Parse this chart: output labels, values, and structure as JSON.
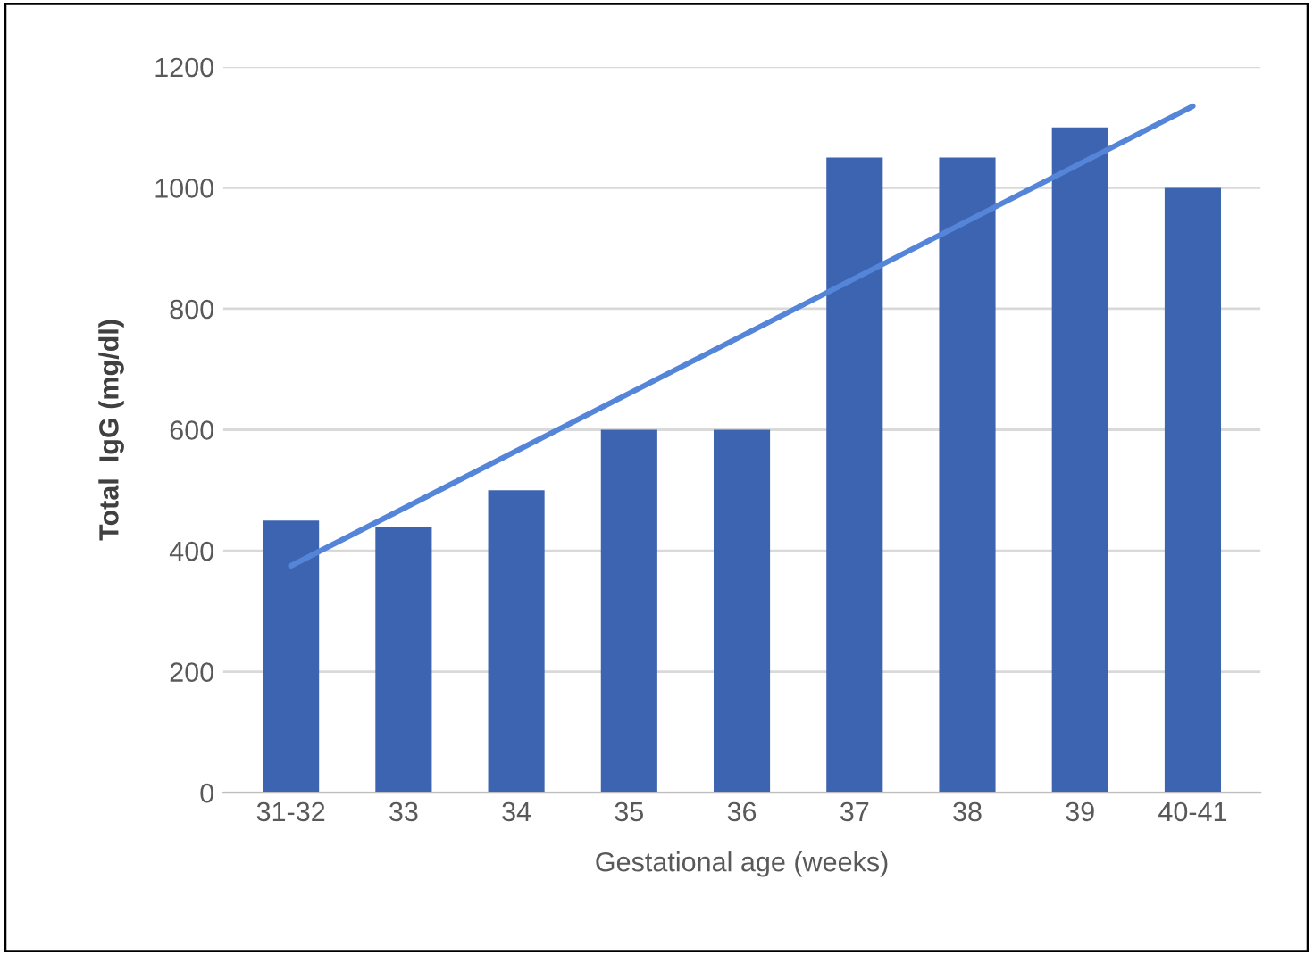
{
  "chart_data": {
    "type": "bar",
    "xlabel": "Gestational age (weeks)",
    "ylabel": "Total  IgG (mg/dl)",
    "categories": [
      "31-32",
      "33",
      "34",
      "35",
      "36",
      "37",
      "38",
      "39",
      "40-41"
    ],
    "series": [
      {
        "color": "#3d64b0",
        "values": [
          450,
          440,
          500,
          600,
          600,
          1050,
          1050,
          1100,
          1000
        ]
      },
      {
        "type": "line",
        "color": "#5585d8",
        "values": [
          375,
          null,
          null,
          null,
          null,
          null,
          null,
          null,
          1135
        ]
      }
    ],
    "ylim": [
      0,
      1200
    ],
    "yticks": [
      0,
      200,
      400,
      600,
      800,
      1000,
      1200
    ],
    "grid": "y"
  }
}
